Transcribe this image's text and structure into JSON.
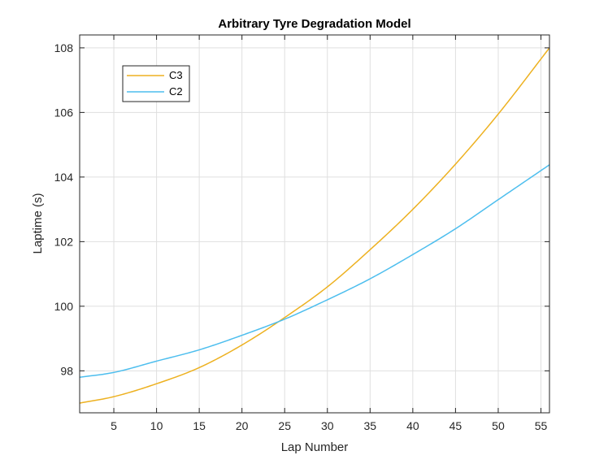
{
  "chart_data": {
    "type": "line",
    "title": "Arbitrary Tyre Degradation Model",
    "xlabel": "Lap Number",
    "ylabel": "Laptime (s)",
    "xlim": [
      1,
      56
    ],
    "ylim": [
      96.7,
      108.4
    ],
    "xticks": [
      5,
      10,
      15,
      20,
      25,
      30,
      35,
      40,
      45,
      50,
      55
    ],
    "yticks": [
      98,
      100,
      102,
      104,
      106,
      108
    ],
    "grid": true,
    "legend_position": "top-left",
    "series": [
      {
        "name": "C3",
        "color": "#EDB120",
        "x": [
          1,
          5,
          10,
          15,
          20,
          25,
          30,
          35,
          40,
          45,
          50,
          56
        ],
        "y": [
          97.0,
          97.2,
          97.6,
          98.1,
          98.8,
          99.65,
          100.6,
          101.75,
          103.0,
          104.4,
          105.95,
          108.0
        ]
      },
      {
        "name": "C2",
        "color": "#4DBEEE",
        "x": [
          1,
          5,
          10,
          15,
          20,
          25,
          30,
          35,
          40,
          45,
          50,
          56
        ],
        "y": [
          97.8,
          97.95,
          98.3,
          98.65,
          99.1,
          99.6,
          100.2,
          100.85,
          101.6,
          102.4,
          103.3,
          104.38
        ]
      }
    ]
  }
}
